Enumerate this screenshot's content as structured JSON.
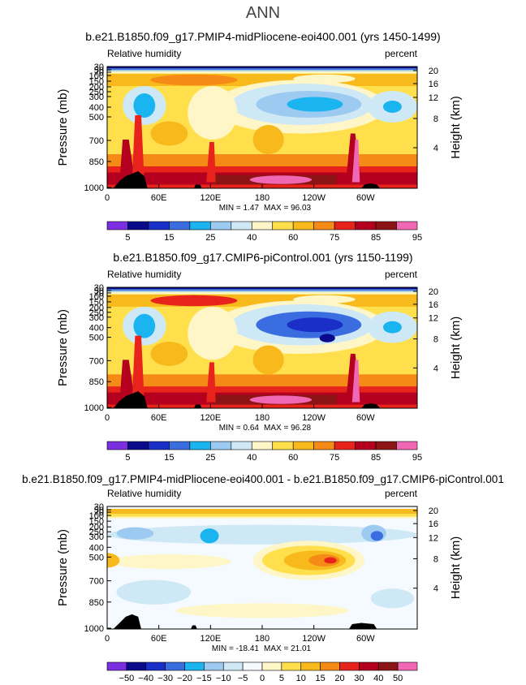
{
  "figure": {
    "title": "ANN"
  },
  "palettes": {
    "abs": [
      "#7b2fe0",
      "#0a0a8c",
      "#1a2fc8",
      "#3a6ee0",
      "#1ab4f0",
      "#9ccaf0",
      "#cfe8f5",
      "#fff6c8",
      "#ffe04c",
      "#f7b91c",
      "#f58a16",
      "#e8231c",
      "#b4001e",
      "#8c1414",
      "#f068b4"
    ],
    "diff": [
      "#7b2fe0",
      "#0a0a8c",
      "#1a2fc8",
      "#3a6ee0",
      "#1ab4f0",
      "#9ccaf0",
      "#cfe8f5",
      "#f4faff",
      "#fff6c8",
      "#ffe04c",
      "#f7b91c",
      "#f58a16",
      "#e8231c",
      "#b4001e",
      "#8c1414",
      "#f068b4"
    ]
  },
  "chart_data": [
    {
      "type": "heatmap",
      "title": "b.e21.B1850.f09_g17.PMIP4-midPliocene-eoi400.001 (yrs 1450-1499)",
      "variable": "Relative humidity",
      "units": "percent",
      "ylabel": "Pressure (mb)",
      "y2label": "Height (km)",
      "xticks": [
        "0",
        "60E",
        "120E",
        "180",
        "120W",
        "60W"
      ],
      "xlim": [
        0,
        360
      ],
      "yticks": [
        "30",
        "50",
        "70",
        "100",
        "150",
        "200",
        "250",
        "300",
        "400",
        "500",
        "700",
        "850",
        "1000"
      ],
      "ylim": [
        1000,
        30
      ],
      "y2ticks": [
        "20",
        "16",
        "12",
        "8",
        "4"
      ],
      "min_label": "MIN =   1.47",
      "max_label": "MAX =  96.03",
      "levels": [
        "5",
        "15",
        "25",
        "40",
        "60",
        "75",
        "85",
        "95"
      ],
      "palette": "abs"
    },
    {
      "type": "heatmap",
      "title": "b.e21.B1850.f09_g17.CMIP6-piControl.001 (yrs 1150-1199)",
      "variable": "Relative humidity",
      "units": "percent",
      "ylabel": "Pressure (mb)",
      "y2label": "Height (km)",
      "xticks": [
        "0",
        "60E",
        "120E",
        "180",
        "120W",
        "60W"
      ],
      "xlim": [
        0,
        360
      ],
      "yticks": [
        "30",
        "50",
        "70",
        "100",
        "150",
        "200",
        "250",
        "300",
        "400",
        "500",
        "700",
        "850",
        "1000"
      ],
      "ylim": [
        1000,
        30
      ],
      "y2ticks": [
        "20",
        "16",
        "12",
        "8",
        "4"
      ],
      "min_label": "MIN =   0.64",
      "max_label": "MAX =  96.28",
      "levels": [
        "5",
        "15",
        "25",
        "40",
        "60",
        "75",
        "85",
        "95"
      ],
      "palette": "abs"
    },
    {
      "type": "heatmap",
      "title": "b.e21.B1850.f09_g17.PMIP4-midPliocene-eoi400.001 - b.e21.B1850.f09_g17.CMIP6-piControl.001",
      "variable": "Relative humidity",
      "units": "percent",
      "ylabel": "Pressure (mb)",
      "y2label": "Height (km)",
      "xticks": [
        "0",
        "60E",
        "120E",
        "180",
        "120W",
        "60W"
      ],
      "xlim": [
        0,
        360
      ],
      "yticks": [
        "30",
        "50",
        "70",
        "100",
        "150",
        "200",
        "250",
        "300",
        "400",
        "500",
        "700",
        "850",
        "1000"
      ],
      "ylim": [
        1000,
        30
      ],
      "y2ticks": [
        "20",
        "16",
        "12",
        "8",
        "4"
      ],
      "min_label": "MIN = -18.41",
      "max_label": "MAX =  21.01",
      "levels": [
        "−50",
        "−40",
        "−30",
        "−20",
        "−15",
        "−10",
        "−5",
        "0",
        "5",
        "10",
        "15",
        "20",
        "30",
        "40",
        "50"
      ],
      "palette": "diff"
    }
  ]
}
